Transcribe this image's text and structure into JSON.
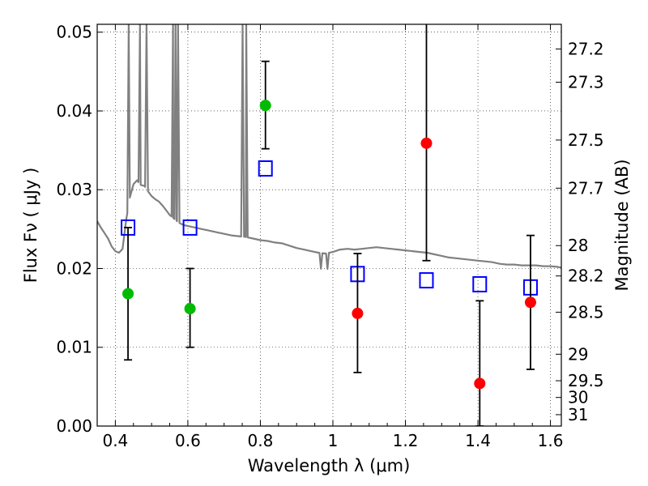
{
  "chart_data": {
    "type": "scatter",
    "xlabel": "Wavelength  λ (μm)",
    "ylabel_left": "Flux  Fν  ( μJy )",
    "ylabel_right": "Magnitude (AB)",
    "xlim": [
      0.35,
      1.63
    ],
    "ylim": [
      0.0,
      0.051
    ],
    "grid": true,
    "x_ticks": [
      {
        "value": 0.4,
        "label": "0.4"
      },
      {
        "value": 0.6,
        "label": "0.6"
      },
      {
        "value": 0.8,
        "label": "0.8"
      },
      {
        "value": 1.0,
        "label": "1"
      },
      {
        "value": 1.2,
        "label": "1.2"
      },
      {
        "value": 1.4,
        "label": "1.4"
      },
      {
        "value": 1.6,
        "label": "1.6"
      }
    ],
    "y_ticks": [
      {
        "value": 0.0,
        "label": "0.00"
      },
      {
        "value": 0.01,
        "label": "0.01"
      },
      {
        "value": 0.02,
        "label": "0.02"
      },
      {
        "value": 0.03,
        "label": "0.03"
      },
      {
        "value": 0.04,
        "label": "0.04"
      },
      {
        "value": 0.05,
        "label": "0.05"
      }
    ],
    "mag_ticks": [
      "27.2",
      "27.3",
      "27.5",
      "27.7",
      "28",
      "28.2",
      "28.5",
      "29",
      "29.5",
      "30",
      "31"
    ],
    "colors": {
      "template": "#808080",
      "model": "#0000ff",
      "optical": "#00bb00",
      "nir": "#ff0000",
      "errorbar": "#000000"
    },
    "series": [
      {
        "marker": "open-square",
        "color": "#0000ff",
        "points": [
          {
            "x": 0.435,
            "y": 0.0252
          },
          {
            "x": 0.606,
            "y": 0.0252
          },
          {
            "x": 0.814,
            "y": 0.0327
          },
          {
            "x": 1.068,
            "y": 0.0193
          },
          {
            "x": 1.258,
            "y": 0.0185
          },
          {
            "x": 1.405,
            "y": 0.018
          },
          {
            "x": 1.545,
            "y": 0.0176
          }
        ]
      },
      {
        "marker": "filled-circle",
        "color": "#00bb00",
        "points": [
          {
            "x": 0.435,
            "y": 0.0168,
            "yerr": [
              0.0084,
              0.0252
            ]
          },
          {
            "x": 0.606,
            "y": 0.0149,
            "yerr": [
              0.01,
              0.02
            ]
          },
          {
            "x": 0.814,
            "y": 0.0407,
            "yerr": [
              0.0352,
              0.0463
            ]
          }
        ]
      },
      {
        "marker": "filled-circle",
        "color": "#ff0000",
        "points": [
          {
            "x": 1.068,
            "y": 0.0143,
            "yerr": [
              0.0068,
              0.0219
            ]
          },
          {
            "x": 1.258,
            "y": 0.0359,
            "yerr": [
              0.021,
              0.0515
            ]
          },
          {
            "x": 1.405,
            "y": 0.0054,
            "yerr": [
              0.0,
              0.0159
            ]
          },
          {
            "x": 1.545,
            "y": 0.0157,
            "yerr": [
              0.0072,
              0.0242
            ]
          }
        ]
      }
    ],
    "template_spectrum": {
      "continuum": [
        [
          0.35,
          0.026
        ],
        [
          0.36,
          0.0252
        ],
        [
          0.37,
          0.0245
        ],
        [
          0.38,
          0.0238
        ],
        [
          0.39,
          0.0228
        ],
        [
          0.4,
          0.0222
        ],
        [
          0.41,
          0.022
        ],
        [
          0.42,
          0.0225
        ],
        [
          0.43,
          0.0262
        ],
        [
          0.44,
          0.029
        ],
        [
          0.45,
          0.0307
        ],
        [
          0.46,
          0.0312
        ],
        [
          0.47,
          0.0306
        ],
        [
          0.48,
          0.0305
        ],
        [
          0.49,
          0.0298
        ],
        [
          0.5,
          0.0292
        ],
        [
          0.51,
          0.0288
        ],
        [
          0.52,
          0.0285
        ],
        [
          0.53,
          0.028
        ],
        [
          0.54,
          0.0274
        ],
        [
          0.55,
          0.0268
        ],
        [
          0.56,
          0.0264
        ],
        [
          0.57,
          0.026
        ],
        [
          0.58,
          0.0257
        ],
        [
          0.59,
          0.0255
        ],
        [
          0.6,
          0.0254
        ],
        [
          0.62,
          0.0252
        ],
        [
          0.64,
          0.025
        ],
        [
          0.66,
          0.0248
        ],
        [
          0.68,
          0.0246
        ],
        [
          0.7,
          0.0244
        ],
        [
          0.72,
          0.0242
        ],
        [
          0.74,
          0.0241
        ],
        [
          0.76,
          0.024
        ],
        [
          0.78,
          0.0238
        ],
        [
          0.8,
          0.0236
        ],
        [
          0.82,
          0.0235
        ],
        [
          0.84,
          0.0233
        ],
        [
          0.86,
          0.0232
        ],
        [
          0.88,
          0.0229
        ],
        [
          0.9,
          0.0226
        ],
        [
          0.92,
          0.0224
        ],
        [
          0.94,
          0.0222
        ],
        [
          0.96,
          0.022
        ],
        [
          0.98,
          0.0219
        ],
        [
          1.0,
          0.0221
        ],
        [
          1.02,
          0.0224
        ],
        [
          1.04,
          0.0225
        ],
        [
          1.06,
          0.0224
        ],
        [
          1.08,
          0.0225
        ],
        [
          1.1,
          0.0226
        ],
        [
          1.12,
          0.0227
        ],
        [
          1.14,
          0.0226
        ],
        [
          1.16,
          0.0225
        ],
        [
          1.18,
          0.0224
        ],
        [
          1.2,
          0.0223
        ],
        [
          1.22,
          0.0222
        ],
        [
          1.24,
          0.0221
        ],
        [
          1.26,
          0.022
        ],
        [
          1.28,
          0.0218
        ],
        [
          1.3,
          0.0216
        ],
        [
          1.32,
          0.0214
        ],
        [
          1.34,
          0.0213
        ],
        [
          1.36,
          0.0212
        ],
        [
          1.38,
          0.0211
        ],
        [
          1.4,
          0.021
        ],
        [
          1.42,
          0.0209
        ],
        [
          1.44,
          0.0208
        ],
        [
          1.46,
          0.0206
        ],
        [
          1.48,
          0.0205
        ],
        [
          1.5,
          0.0205
        ],
        [
          1.52,
          0.0204
        ],
        [
          1.54,
          0.0204
        ],
        [
          1.56,
          0.0204
        ],
        [
          1.58,
          0.0203
        ],
        [
          1.6,
          0.0203
        ],
        [
          1.62,
          0.0202
        ],
        [
          1.63,
          0.0201
        ]
      ],
      "emission_lines": [
        {
          "x": 0.437,
          "peak": 0.051
        },
        {
          "x": 0.468,
          "peak": 0.051
        },
        {
          "x": 0.486,
          "peak": 0.051
        },
        {
          "x": 0.559,
          "peak": 0.051
        },
        {
          "x": 0.566,
          "peak": 0.051
        },
        {
          "x": 0.573,
          "peak": 0.051
        },
        {
          "x": 0.751,
          "peak": 0.051
        },
        {
          "x": 0.761,
          "peak": 0.051
        }
      ],
      "absorption_features": [
        {
          "x": 0.967,
          "depth": 0.002
        },
        {
          "x": 0.985,
          "depth": 0.002
        }
      ]
    }
  }
}
